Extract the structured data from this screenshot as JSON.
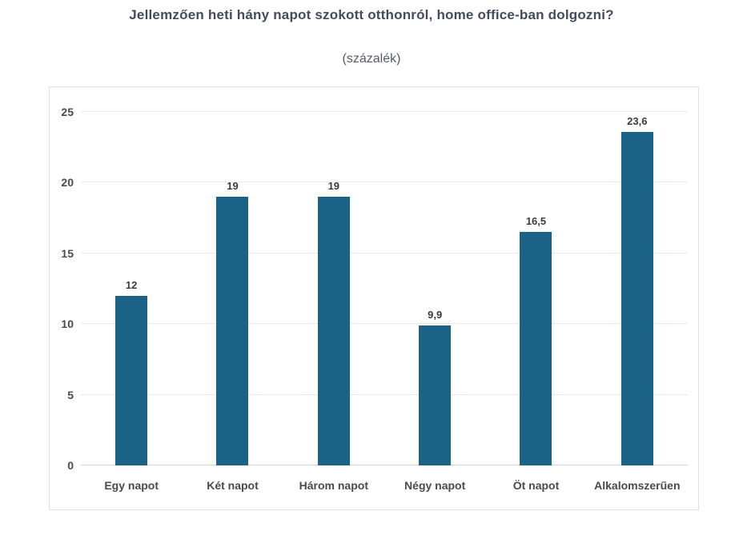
{
  "header": {
    "title": "Jellemzően heti hány napot szokott otthonról, home office-ban dolgozni?",
    "subtitle": "(százalék)"
  },
  "chart_data": {
    "type": "bar",
    "title": "Jellemzően heti hány napot szokott otthonról, home office-ban dolgozni?",
    "subtitle": "(százalék)",
    "categories": [
      "Egy napot",
      "Két napot",
      "Három napot",
      "Négy napot",
      "Öt napot",
      "Alkalomszerűen"
    ],
    "values": [
      12,
      19,
      19,
      9.9,
      16.5,
      23.6
    ],
    "value_labels": [
      "12",
      "19",
      "19",
      "9,9",
      "16,5",
      "23,6"
    ],
    "xlabel": "",
    "ylabel": "",
    "ylim": [
      0,
      25
    ],
    "yticks": [
      0,
      5,
      10,
      15,
      20,
      25
    ],
    "grid": true,
    "legend": "none"
  },
  "colors": {
    "bar": "#1b6287",
    "title": "#434b5c",
    "subtitle": "#565a62",
    "axis_text": "#4a4a4a",
    "value_label": "#3b3b3b",
    "gridline": "#e7e7e7",
    "baseline": "#d6d6d6",
    "chart_border": "#e0e0e0",
    "background": "#ffffff"
  }
}
